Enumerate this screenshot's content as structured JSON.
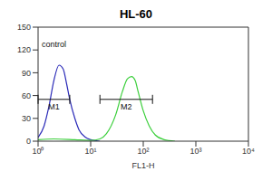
{
  "chart_data": {
    "type": "line",
    "title": "HL-60",
    "x_label": "FL1-H",
    "log": "x",
    "xlim": [
      1,
      10000
    ],
    "xticks": [
      {
        "value": 1,
        "label": "10⁰"
      },
      {
        "value": 10,
        "label": "10¹"
      },
      {
        "value": 100,
        "label": "10²"
      },
      {
        "value": 1000,
        "label": "10³"
      },
      {
        "value": 10000,
        "label": "10⁴"
      }
    ],
    "ylim": [
      0,
      150
    ],
    "yticks": [
      0,
      30,
      60,
      90,
      120,
      150
    ],
    "series": [
      {
        "color": "#2b2bb8",
        "x": [
          1,
          1.3,
          1.6,
          2,
          2.5,
          3,
          3.5,
          4,
          5,
          6,
          8,
          10,
          15
        ],
        "values": [
          5,
          20,
          45,
          80,
          100,
          95,
          75,
          55,
          30,
          15,
          5,
          2,
          0
        ]
      },
      {
        "color": "#3ccf3c",
        "x": [
          1,
          2,
          5,
          10,
          15,
          20,
          30,
          40,
          50,
          60,
          70,
          80,
          100,
          130,
          170,
          250,
          400
        ],
        "values": [
          2,
          3,
          2,
          1,
          3,
          10,
          35,
          65,
          82,
          85,
          80,
          65,
          40,
          20,
          8,
          2,
          0
        ]
      }
    ],
    "gates": [
      {
        "label": "M1",
        "x": [
          1,
          4
        ],
        "y": 55
      },
      {
        "label": "M2",
        "x": [
          15,
          150
        ],
        "y": 55
      }
    ],
    "annotations": [
      {
        "text": "control",
        "x": 2,
        "y": 128
      }
    ]
  }
}
